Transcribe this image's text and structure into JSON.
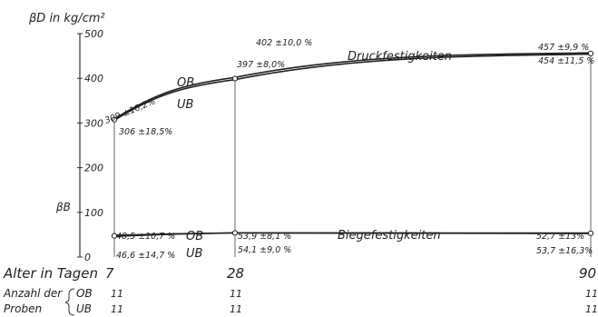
{
  "chart_data": {
    "type": "line",
    "y_axis_label": "βD in kg/cm²",
    "y_axis_label_secondary": "βB",
    "x_axis_label": "Alter in Tagen",
    "ylim": [
      0,
      500
    ],
    "y_ticks": [
      "0",
      "100",
      "200",
      "300",
      "400",
      "500"
    ],
    "x": [
      7,
      28,
      90
    ],
    "x_tick_labels": [
      "7",
      "28",
      "90"
    ],
    "curves": [
      {
        "title": "Druckfestigkeiten",
        "series": [
          {
            "name": "OB",
            "values": [
              309,
              402,
              457
            ],
            "labels": [
              "309 ±10,2%",
              "402 ±10,0 %",
              "457 ±9,9 %"
            ]
          },
          {
            "name": "UB",
            "values": [
              306,
              397,
              454
            ],
            "labels": [
              "306 ±18,5%",
              "397 ±8,0%",
              "454 ±11,5 %"
            ]
          }
        ]
      },
      {
        "title": "Biegefestigkeiten",
        "series": [
          {
            "name": "OB",
            "values": [
              48.5,
              53.9,
              52.7
            ],
            "labels": [
              "48,5 ±10,7 %",
              "53,9 ±8,1 %",
              "52,7 ±13%"
            ]
          },
          {
            "name": "UB",
            "values": [
              46.6,
              54.1,
              53.7
            ],
            "labels": [
              "46,6 ±14,7 %",
              "54,1 ±9,0 %",
              "53,7 ±16,3%"
            ]
          }
        ]
      }
    ]
  },
  "samples": {
    "label_line1": "Anzahl der",
    "label_line2": "Proben",
    "ob_label": "OB",
    "ub_label": "UB",
    "ob_counts": [
      "11",
      "11",
      "11"
    ],
    "ub_counts": [
      "11",
      "11",
      "11"
    ]
  }
}
